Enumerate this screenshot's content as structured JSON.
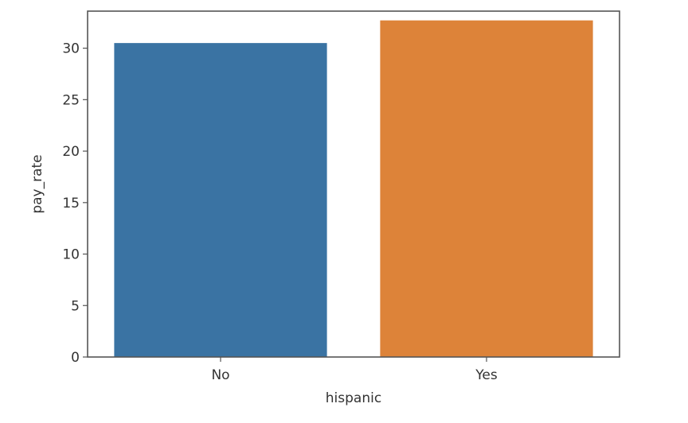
{
  "chart_data": {
    "type": "bar",
    "categories": [
      "No",
      "Yes"
    ],
    "values": [
      30.5,
      32.7
    ],
    "xlabel": "hispanic",
    "ylabel": "pay_rate",
    "ylim": [
      0,
      33.6
    ],
    "yticks": [
      0,
      5,
      10,
      15,
      20,
      25,
      30
    ],
    "grid": false,
    "colors": [
      "#3a73a3",
      "#dd8339"
    ],
    "frame_color": "#555555"
  }
}
